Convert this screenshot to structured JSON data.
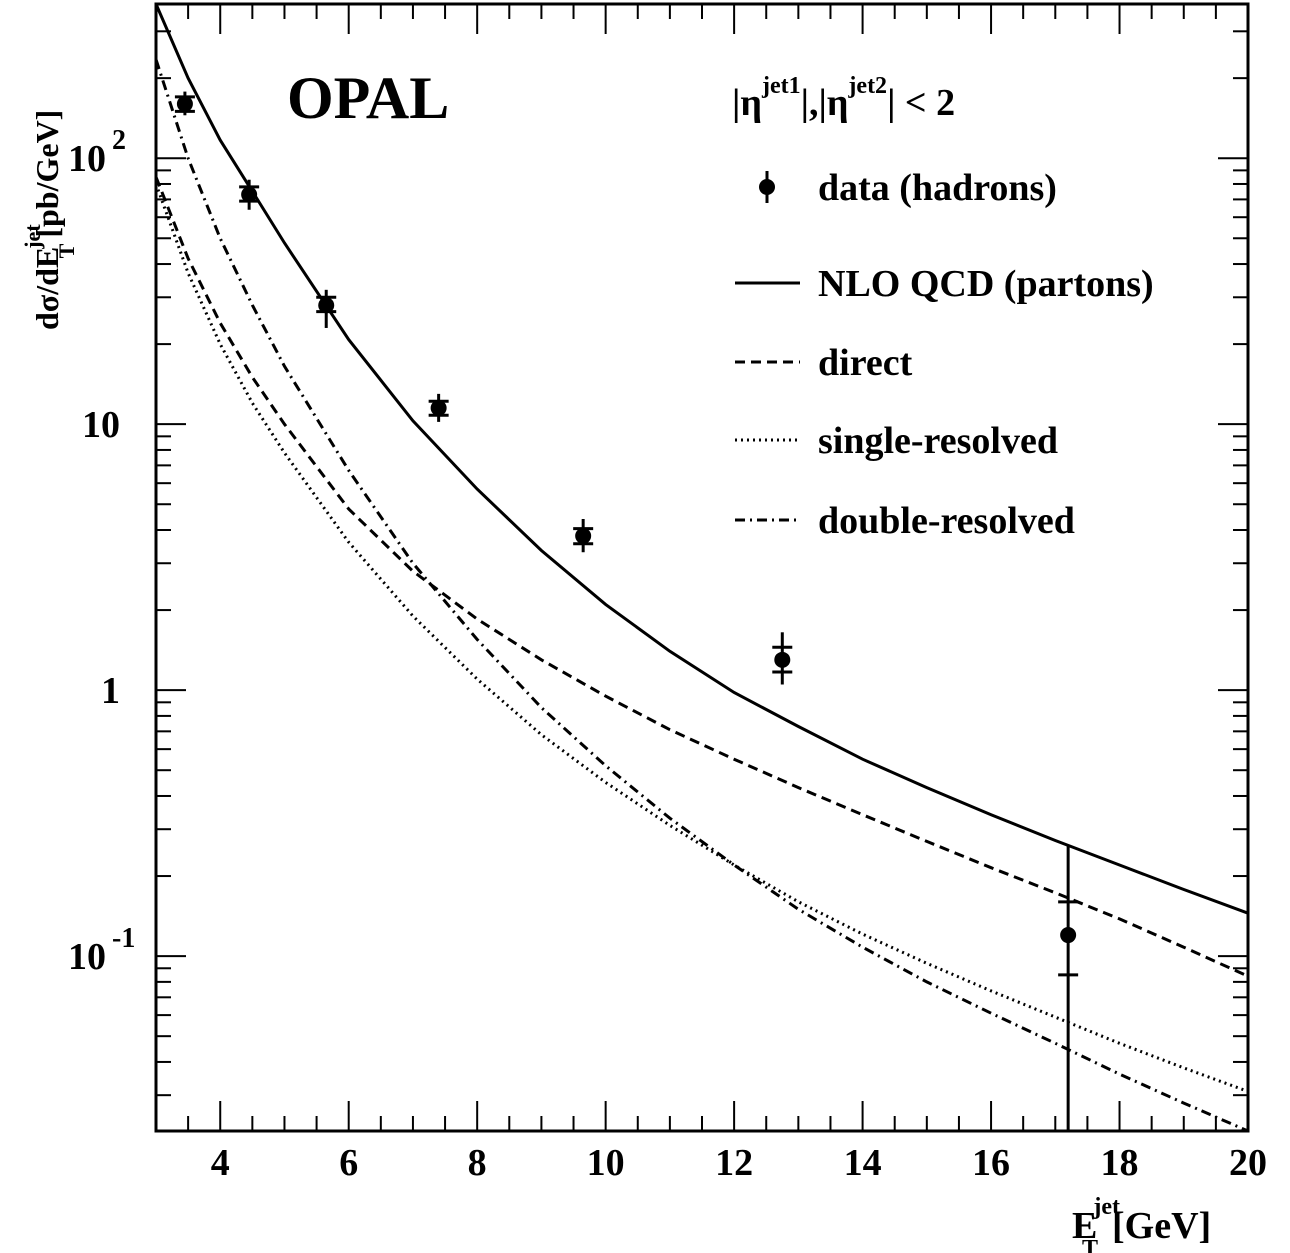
{
  "chart_data": {
    "type": "scatter",
    "title": "OPAL",
    "cut_label": {
      "part1": "|η",
      "sup1": "jet1",
      "part2": "|,|η",
      "sup2": "jet2",
      "part3": "| < 2"
    },
    "xlabel": {
      "main": "E",
      "sub": "T",
      "sup": "jet",
      "unit": "[GeV]"
    },
    "ylabel": {
      "main": "dσ/dE",
      "sub": "T",
      "sup": "jet",
      "unit": "[pb/GeV]"
    },
    "xlim": [
      3,
      20
    ],
    "ylim": [
      0.022,
      380
    ],
    "yscale": "log",
    "grid": false,
    "legend_position": "top-right",
    "xticks": [
      {
        "value": 4,
        "label": "4"
      },
      {
        "value": 6,
        "label": "6"
      },
      {
        "value": 8,
        "label": "8"
      },
      {
        "value": 10,
        "label": "10"
      },
      {
        "value": 12,
        "label": "12"
      },
      {
        "value": 14,
        "label": "14"
      },
      {
        "value": 16,
        "label": "16"
      },
      {
        "value": 18,
        "label": "18"
      },
      {
        "value": 20,
        "label": "20"
      }
    ],
    "yticks": [
      {
        "value": 100,
        "base": "10",
        "exp": "2"
      },
      {
        "value": 10,
        "base": "10",
        "exp": ""
      },
      {
        "value": 1,
        "base": "1",
        "exp": ""
      },
      {
        "value": 0.1,
        "base": "10",
        "exp": "-1"
      }
    ],
    "data_points": {
      "name": "data (hadrons)",
      "x": [
        3.45,
        4.45,
        5.65,
        7.4,
        9.65,
        12.75,
        17.2
      ],
      "y": [
        160,
        73,
        28,
        11.5,
        3.8,
        1.3,
        0.12
      ],
      "err_low": [
        145,
        64,
        23,
        10.2,
        3.3,
        1.05,
        0.013
      ],
      "err_high": [
        178,
        83,
        32,
        13,
        4.4,
        1.65,
        0.26
      ],
      "syst_low": [
        150,
        69,
        26.5,
        10.8,
        3.55,
        1.17,
        0.085
      ],
      "syst_high": [
        170,
        78,
        30,
        12.2,
        4.05,
        1.45,
        0.16
      ]
    },
    "series": [
      {
        "name": "NLO QCD (partons)",
        "style": "solid",
        "x": [
          3,
          3.5,
          4,
          4.5,
          5,
          6,
          7,
          8,
          9,
          10,
          11,
          12,
          13,
          14,
          15,
          16,
          17,
          18,
          19,
          20
        ],
        "y": [
          380,
          200,
          117,
          75,
          48,
          20.8,
          10.3,
          5.7,
          3.35,
          2.1,
          1.4,
          0.98,
          0.73,
          0.55,
          0.43,
          0.34,
          0.272,
          0.22,
          0.178,
          0.145
        ]
      },
      {
        "name": "direct",
        "style": "dashed",
        "x": [
          3,
          3.5,
          4,
          4.5,
          5,
          6,
          7,
          8,
          9,
          10,
          11,
          12,
          13,
          14,
          15,
          16,
          17,
          18,
          19,
          20
        ],
        "y": [
          85,
          42,
          24,
          15,
          10,
          4.8,
          2.8,
          1.85,
          1.3,
          0.95,
          0.71,
          0.55,
          0.43,
          0.34,
          0.27,
          0.215,
          0.173,
          0.138,
          0.108,
          0.084
        ]
      },
      {
        "name": "single-resolved",
        "style": "dotted",
        "x": [
          3,
          3.5,
          4,
          4.5,
          5,
          6,
          7,
          8,
          9,
          10,
          11,
          12,
          13,
          14,
          15,
          16,
          17,
          18,
          19,
          20
        ],
        "y": [
          80,
          37,
          20,
          12,
          7.8,
          3.6,
          1.9,
          1.1,
          0.68,
          0.45,
          0.31,
          0.22,
          0.16,
          0.121,
          0.094,
          0.074,
          0.059,
          0.047,
          0.038,
          0.031
        ]
      },
      {
        "name": "double-resolved",
        "style": "dashdot",
        "x": [
          3,
          3.5,
          4,
          4.5,
          5,
          6,
          7,
          8,
          9,
          10,
          11,
          12,
          13,
          14,
          15,
          16,
          17,
          18,
          19,
          20
        ],
        "y": [
          235,
          100,
          50,
          28,
          16.5,
          6.7,
          3.0,
          1.55,
          0.86,
          0.52,
          0.33,
          0.22,
          0.15,
          0.108,
          0.08,
          0.061,
          0.047,
          0.036,
          0.028,
          0.022
        ]
      }
    ]
  }
}
